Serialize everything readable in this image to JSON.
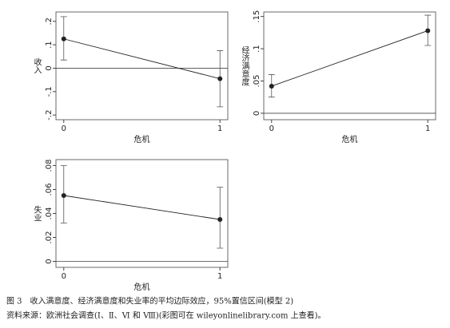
{
  "chart_data": [
    {
      "type": "line",
      "x_label": "危机",
      "y_label": "收入",
      "x": [
        0,
        1
      ],
      "xlim": [
        -0.05,
        1.05
      ],
      "xticks": [
        0,
        1
      ],
      "ylim": [
        -0.22,
        0.24
      ],
      "yticks": [
        {
          "value": -0.2,
          "label": "-.2"
        },
        {
          "value": -0.1,
          "label": "-.1"
        },
        0,
        {
          "value": 0.1,
          "label": ".1"
        },
        {
          "value": 0.2,
          "label": ".2"
        }
      ],
      "reference_line": 0,
      "color": "#222222",
      "series": [
        {
          "values": [
            0.125,
            -0.045
          ],
          "ci_low": [
            0.035,
            -0.165
          ],
          "ci_high": [
            0.22,
            0.075
          ]
        }
      ]
    },
    {
      "type": "line",
      "x_label": "危机",
      "y_label": "经济满意度",
      "x": [
        0,
        1
      ],
      "xlim": [
        -0.05,
        1.05
      ],
      "xticks": [
        0,
        1
      ],
      "ylim": [
        -0.01,
        0.157
      ],
      "yticks": [
        0,
        {
          "value": 0.05,
          "label": ".05"
        },
        {
          "value": 0.1,
          "label": ".1"
        },
        {
          "value": 0.15,
          "label": ".15"
        }
      ],
      "reference_line": 0,
      "color": "#222222",
      "series": [
        {
          "values": [
            0.042,
            0.128
          ],
          "ci_low": [
            0.025,
            0.105
          ],
          "ci_high": [
            0.06,
            0.152
          ]
        }
      ]
    },
    {
      "type": "line",
      "x_label": "危机",
      "y_label": "失业",
      "x": [
        0,
        1
      ],
      "xlim": [
        -0.05,
        1.05
      ],
      "xticks": [
        0,
        1
      ],
      "ylim": [
        -0.005,
        0.085
      ],
      "yticks": [
        0,
        {
          "value": 0.02,
          "label": ".02"
        },
        {
          "value": 0.04,
          "label": ".04"
        },
        {
          "value": 0.06,
          "label": ".06"
        },
        {
          "value": 0.08,
          "label": ".08"
        }
      ],
      "reference_line": 0,
      "color": "#222222",
      "series": [
        {
          "values": [
            0.055,
            0.035
          ],
          "ci_low": [
            0.032,
            0.011
          ],
          "ci_high": [
            0.08,
            0.062
          ]
        }
      ]
    }
  ],
  "caption": [
    "图 3　收入满意度、经济满意度和失业率的平均边际效应，95%置信区间(模型 2)",
    "资料来源：欧洲社会调查(Ⅰ、Ⅱ、Ⅵ 和 Ⅷ)(彩图可在 wileyonlinelibrary.com 上查看)。"
  ]
}
